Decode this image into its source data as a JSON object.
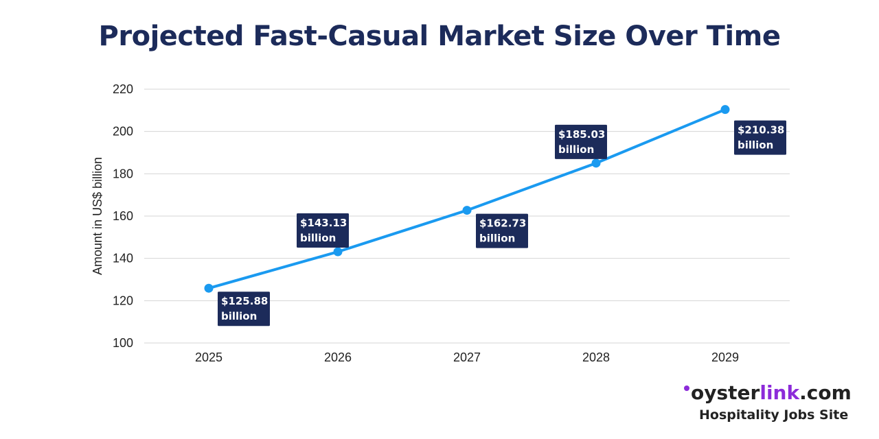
{
  "chart_data": {
    "type": "line",
    "title": "Projected Fast-Casual Market Size Over Time",
    "xlabel": "",
    "ylabel": "Amount in US$ billion",
    "categories": [
      "2025",
      "2026",
      "2027",
      "2028",
      "2029"
    ],
    "series": [
      {
        "values": [
          125.88,
          143.13,
          162.73,
          185.03,
          210.38
        ],
        "color": "#1a9af0"
      }
    ],
    "data_labels": [
      [
        "$125.88",
        "billion"
      ],
      [
        "$143.13",
        "billion"
      ],
      [
        "$162.73",
        "billion"
      ],
      [
        "$185.03",
        "billion"
      ],
      [
        "$210.38",
        "billion"
      ]
    ],
    "ylim": [
      100,
      220
    ],
    "yticks": [
      100,
      120,
      140,
      160,
      180,
      200,
      220
    ],
    "grid": true,
    "legend": "none",
    "label_color": "#1c2b5a"
  },
  "brand": {
    "name_prefix": "oyster",
    "name_link": "link",
    "name_suffix": ".com",
    "tagline": "Hospitality Jobs Site"
  }
}
